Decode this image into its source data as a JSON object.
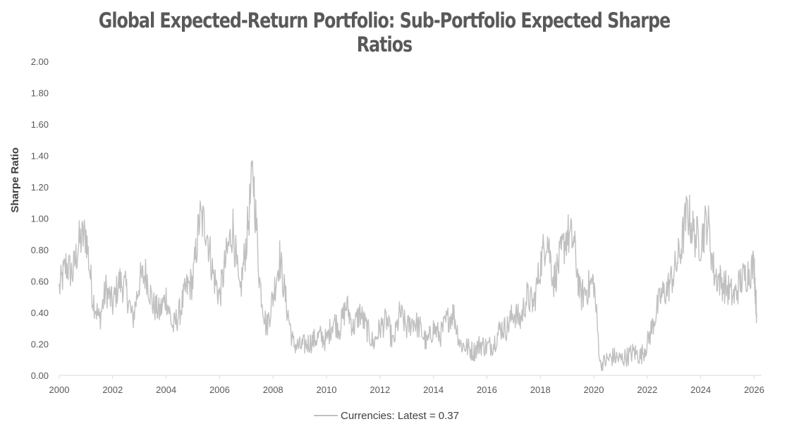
{
  "chart_data": {
    "type": "line",
    "title": "Global Expected-Return Portfolio: Sub-Portfolio Expected Sharpe Ratios",
    "xlabel": "",
    "ylabel": "Sharpe Ratio",
    "xlim": [
      2000,
      2026.2
    ],
    "ylim": [
      0,
      2
    ],
    "x_ticks": [
      "2000",
      "2002",
      "2004",
      "2006",
      "2008",
      "2010",
      "2012",
      "2014",
      "2016",
      "2018",
      "2020",
      "2022",
      "2024",
      "2026"
    ],
    "y_ticks": [
      "0.00",
      "0.20",
      "0.40",
      "0.60",
      "0.80",
      "1.00",
      "1.20",
      "1.40",
      "1.60",
      "1.80",
      "2.00"
    ],
    "grid": false,
    "legend_position": "bottom-center",
    "series": [
      {
        "name": "Currencies: Latest = 0.37",
        "color": "#c0c0c0",
        "x": [
          2000.0,
          2000.25,
          2000.5,
          2000.75,
          2001.0,
          2001.25,
          2001.5,
          2001.75,
          2002.0,
          2002.25,
          2002.5,
          2002.75,
          2003.0,
          2003.25,
          2003.5,
          2003.75,
          2004.0,
          2004.25,
          2004.5,
          2004.75,
          2005.0,
          2005.25,
          2005.5,
          2005.75,
          2006.0,
          2006.25,
          2006.5,
          2006.75,
          2007.0,
          2007.25,
          2007.5,
          2007.75,
          2008.0,
          2008.25,
          2008.5,
          2008.75,
          2009.0,
          2009.25,
          2009.5,
          2009.75,
          2010.0,
          2010.25,
          2010.5,
          2010.75,
          2011.0,
          2011.25,
          2011.5,
          2011.75,
          2012.0,
          2012.25,
          2012.5,
          2012.75,
          2013.0,
          2013.25,
          2013.5,
          2013.75,
          2014.0,
          2014.25,
          2014.5,
          2014.75,
          2015.0,
          2015.25,
          2015.5,
          2015.75,
          2016.0,
          2016.25,
          2016.5,
          2016.75,
          2017.0,
          2017.25,
          2017.5,
          2017.75,
          2018.0,
          2018.25,
          2018.5,
          2018.75,
          2019.0,
          2019.25,
          2019.5,
          2019.75,
          2020.0,
          2020.25,
          2020.5,
          2020.75,
          2021.0,
          2021.25,
          2021.5,
          2021.75,
          2022.0,
          2022.25,
          2022.5,
          2022.75,
          2023.0,
          2023.25,
          2023.5,
          2023.75,
          2024.0,
          2024.25,
          2024.5,
          2024.75,
          2025.0,
          2025.25,
          2025.5,
          2025.75,
          2026.0,
          2026.1
        ],
        "values": [
          0.55,
          0.7,
          0.65,
          0.85,
          0.9,
          0.5,
          0.35,
          0.55,
          0.45,
          0.6,
          0.55,
          0.35,
          0.6,
          0.65,
          0.45,
          0.4,
          0.5,
          0.3,
          0.4,
          0.55,
          0.6,
          1.0,
          0.95,
          0.65,
          0.5,
          0.75,
          0.95,
          0.5,
          0.85,
          1.3,
          0.6,
          0.3,
          0.5,
          0.75,
          0.45,
          0.2,
          0.18,
          0.2,
          0.22,
          0.25,
          0.22,
          0.35,
          0.3,
          0.45,
          0.3,
          0.4,
          0.3,
          0.2,
          0.3,
          0.35,
          0.2,
          0.4,
          0.3,
          0.35,
          0.3,
          0.2,
          0.3,
          0.25,
          0.35,
          0.4,
          0.2,
          0.18,
          0.15,
          0.2,
          0.18,
          0.2,
          0.3,
          0.3,
          0.4,
          0.35,
          0.5,
          0.45,
          0.7,
          0.9,
          0.6,
          0.75,
          0.9,
          0.85,
          0.5,
          0.55,
          0.6,
          0.06,
          0.1,
          0.12,
          0.1,
          0.12,
          0.15,
          0.12,
          0.2,
          0.35,
          0.5,
          0.55,
          0.65,
          0.8,
          1.05,
          0.9,
          0.85,
          1.0,
          0.65,
          0.6,
          0.55,
          0.5,
          0.6,
          0.65,
          0.7,
          0.37
        ]
      }
    ]
  }
}
